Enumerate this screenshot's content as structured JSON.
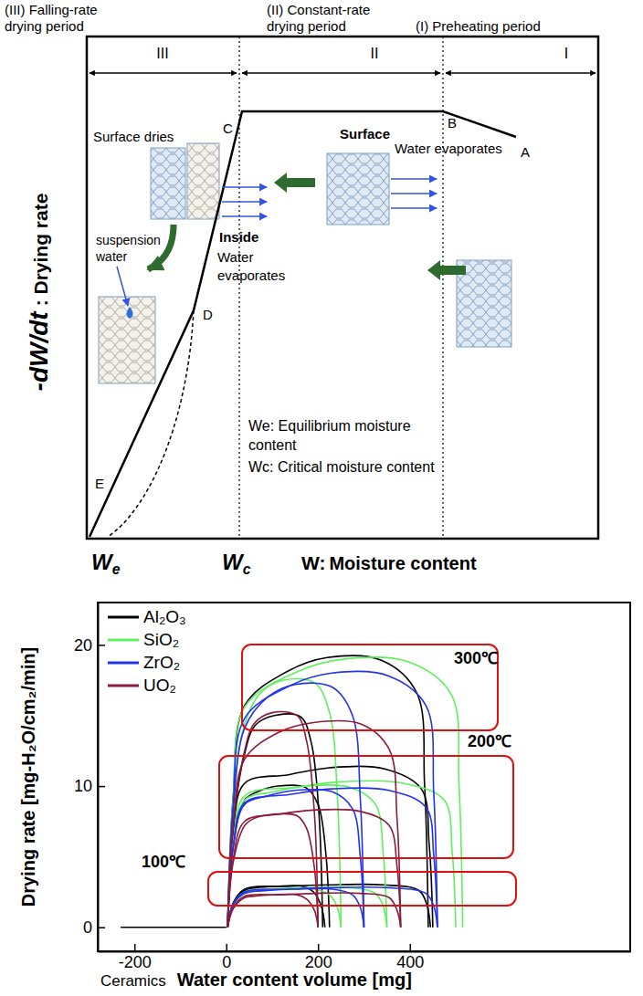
{
  "diagram": {
    "periods": [
      {
        "heading": [
          "(III) Falling-rate",
          "drying period"
        ],
        "numeral": "III"
      },
      {
        "heading": [
          "(II) Constant-rate",
          "drying period"
        ],
        "numeral": "II"
      },
      {
        "heading": [
          "(I) Preheating period"
        ],
        "numeral": "I"
      }
    ],
    "y_axis": {
      "symbol": "-dW/dt",
      "label": ": Drying rate"
    },
    "x_axis": {
      "marks": [
        "We",
        "Wc"
      ],
      "symbol": "W:",
      "label": "Moisture content"
    },
    "points": [
      "A",
      "B",
      "C",
      "D",
      "E"
    ],
    "notes": [
      [
        "Surface dries"
      ],
      [
        "Surface"
      ],
      [
        "Water evaporates"
      ],
      [
        "Inside"
      ],
      [
        "Water",
        "evaporates"
      ],
      [
        "suspension",
        "water"
      ]
    ],
    "definitions": [
      "We: Equilibrium moisture content",
      "Wc: Critical moisture content"
    ]
  },
  "chart_data": {
    "type": "line",
    "xlabel": "Water content volume [mg]",
    "ylabel": "Drying rate [mg-H₂O/cm₂/min]",
    "xlim": [
      -280,
      880
    ],
    "xticks": [
      -200,
      0,
      200,
      400
    ],
    "ylim": [
      -1.7,
      23
    ],
    "yticks": [
      0,
      10,
      20
    ],
    "legend": "top-left",
    "annotations": [
      "300℃",
      "200℃",
      "100℃",
      "Ceramics"
    ],
    "series": [
      {
        "name": "Al₂O₃",
        "color": "#000000",
        "curves": [
          {
            "x": [
              -230,
              0
            ],
            "values": [
              0,
              0
            ]
          },
          {
            "x": [
              215,
              207,
              190,
              166,
              108,
              65,
              40,
              15,
              3
            ],
            "values": [
              0,
              1.5,
              2.5,
              2.9,
              2.9,
              2.8,
              2.6,
              1.7,
              0
            ]
          },
          {
            "x": [
              445,
              437,
              420,
              343,
              223,
              134,
              40,
              15,
              3
            ],
            "values": [
              0,
              1.6,
              2.6,
              3.0,
              3.0,
              2.9,
              2.7,
              1.7,
              0
            ]
          },
          {
            "x": [
              225,
              217,
              200,
              173,
              113,
              68,
              40,
              15,
              3
            ],
            "values": [
              0,
              5.2,
              8.7,
              9.9,
              10,
              9.6,
              9.0,
              5.8,
              0
            ]
          },
          {
            "x": [
              450,
              442,
              425,
              347,
              225,
              135,
              40,
              15,
              3
            ],
            "values": [
              0,
              5.9,
              9.8,
              11.2,
              11.3,
              10.8,
              10.2,
              6.6,
              0
            ]
          },
          {
            "x": [
              210,
              202,
              185,
              162,
              105,
              63,
              40,
              15,
              3
            ],
            "values": [
              0,
              8.0,
              13.1,
              14.9,
              15,
              14.3,
              12.3,
              7.2,
              0
            ]
          },
          {
            "x": [
              440,
              432,
              415,
              339,
              220,
              132,
              40,
              15,
              3
            ],
            "values": [
              0,
              10.1,
              16.6,
              18.9,
              19.1,
              18.1,
              15.7,
              9.2,
              0
            ]
          }
        ]
      },
      {
        "name": "SiO₂",
        "color": "#5ef05e",
        "curves": [
          {
            "x": [
              250,
              242,
              225,
              193,
              125,
              75,
              40,
              15,
              3
            ],
            "values": [
              0,
              1.4,
              2.3,
              2.7,
              2.7,
              2.6,
              2.4,
              1.6,
              0
            ]
          },
          {
            "x": [
              350,
              342,
              325,
              270,
              175,
              105,
              40,
              15,
              3
            ],
            "values": [
              0,
              1.5,
              2.4,
              2.8,
              2.8,
              2.7,
              2.5,
              1.6,
              0
            ]
          },
          {
            "x": [
              350,
              342,
              325,
              270,
              175,
              105,
              40,
              15,
              3
            ],
            "values": [
              0,
              5.2,
              8.7,
              9.9,
              10,
              9.6,
              9.0,
              5.8,
              0
            ]
          },
          {
            "x": [
              500,
              492,
              475,
              385,
              250,
              150,
              40,
              15,
              3
            ],
            "values": [
              0,
              5.4,
              9.0,
              10.2,
              10.3,
              9.9,
              9.3,
              6.0,
              0
            ]
          },
          {
            "x": [
              250,
              242,
              225,
              193,
              125,
              75,
              40,
              15,
              3
            ],
            "values": [
              0,
              9.3,
              15.2,
              17.3,
              17.5,
              16.6,
              14.4,
              8.4,
              0
            ]
          },
          {
            "x": [
              515,
              507,
              490,
              397,
              258,
              155,
              40,
              15,
              3
            ],
            "values": [
              0,
              10.1,
              16.5,
              18.8,
              19,
              18.1,
              15.6,
              9.1,
              0
            ]
          }
        ]
      },
      {
        "name": "ZrO₂",
        "color": "#2233ee",
        "curves": [
          {
            "x": [
              300,
              292,
              275,
              231,
              150,
              90,
              40,
              15,
              3
            ],
            "values": [
              0,
              1.4,
              2.3,
              2.7,
              2.7,
              2.6,
              2.4,
              1.6,
              0
            ]
          },
          {
            "x": [
              460,
              452,
              435,
              354,
              230,
              138,
              40,
              15,
              3
            ],
            "values": [
              0,
              1.5,
              2.4,
              2.8,
              2.8,
              2.7,
              2.5,
              1.6,
              0
            ]
          },
          {
            "x": [
              300,
              292,
              275,
              231,
              150,
              90,
              40,
              15,
              3
            ],
            "values": [
              0,
              5.0,
              8.4,
              9.6,
              9.7,
              9.3,
              8.7,
              5.6,
              0
            ]
          },
          {
            "x": [
              460,
              452,
              435,
              354,
              230,
              138,
              40,
              15,
              3
            ],
            "values": [
              0,
              5.1,
              8.5,
              9.7,
              9.8,
              9.4,
              8.8,
              5.7,
              0
            ]
          },
          {
            "x": [
              300,
              292,
              275,
              231,
              150,
              90,
              40,
              15,
              3
            ],
            "values": [
              0,
              9.1,
              15.0,
              17.0,
              17.2,
              16.3,
              14.1,
              8.3,
              0
            ]
          },
          {
            "x": [
              460,
              452,
              435,
              354,
              230,
              138,
              40,
              15,
              3
            ],
            "values": [
              0,
              9.5,
              15.7,
              17.8,
              18,
              17.1,
              14.8,
              8.6,
              0
            ]
          }
        ]
      },
      {
        "name": "UO₂",
        "color": "#8b1a3c",
        "curves": [
          {
            "x": [
              200,
              192,
              175,
              154,
              100,
              60,
              40,
              15,
              3
            ],
            "values": [
              0,
              1.2,
              2.0,
              2.3,
              2.3,
              2.2,
              2.1,
              1.3,
              0
            ]
          },
          {
            "x": [
              380,
              372,
              355,
              293,
              190,
              114,
              40,
              15,
              3
            ],
            "values": [
              0,
              1.2,
              2.1,
              2.4,
              2.4,
              2.3,
              2.2,
              1.4,
              0
            ]
          },
          {
            "x": [
              200,
              192,
              175,
              154,
              100,
              60,
              40,
              15,
              3
            ],
            "values": [
              0,
              4.2,
              7.0,
              7.9,
              8,
              7.7,
              7.2,
              4.6,
              0
            ]
          },
          {
            "x": [
              380,
              372,
              355,
              293,
              190,
              114,
              40,
              15,
              3
            ],
            "values": [
              0,
              4.3,
              7.2,
              8.2,
              8.3,
              8.0,
              7.5,
              4.8,
              0
            ]
          },
          {
            "x": [
              200,
              192,
              175,
              154,
              100,
              60,
              40,
              15,
              3
            ],
            "values": [
              0,
              8.1,
              13.2,
              15.0,
              15.2,
              14.4,
              12.5,
              7.3,
              0
            ]
          },
          {
            "x": [
              380,
              372,
              355,
              293,
              190,
              114,
              40,
              15,
              3
            ],
            "values": [
              0,
              7.7,
              12.6,
              14.4,
              14.5,
              13.8,
              11.9,
              7.0,
              0
            ]
          }
        ]
      }
    ]
  }
}
